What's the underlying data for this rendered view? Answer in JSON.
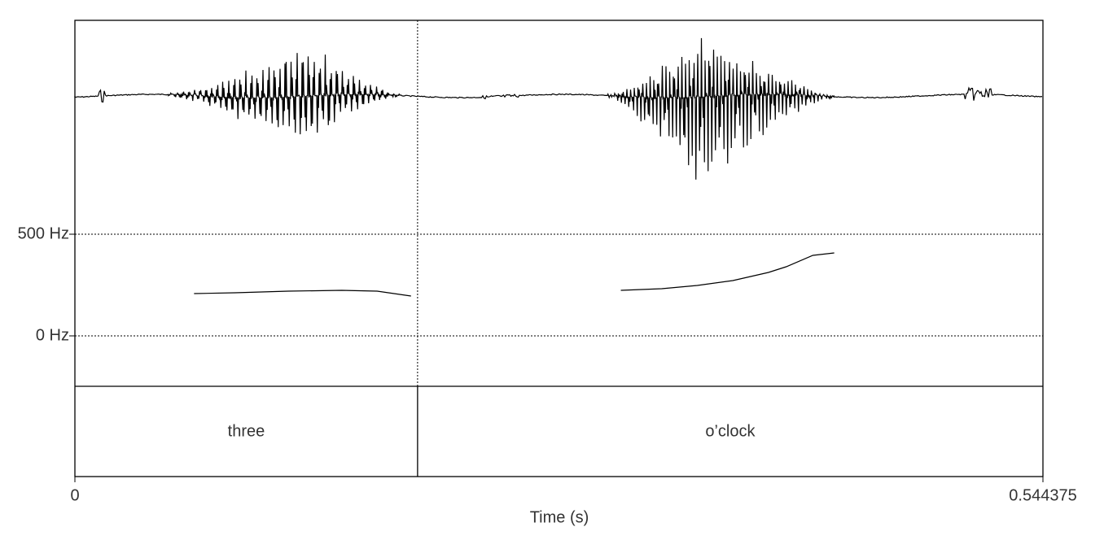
{
  "chart_data": {
    "type": "praat",
    "xlabel": "Time (s)",
    "xlim": [
      0,
      0.544375
    ],
    "xticks": [
      0,
      0.544375
    ],
    "ylim": [
      0,
      500
    ],
    "yticks": [
      {
        "value": 500,
        "label": "500 Hz"
      },
      {
        "value": 0,
        "label": "0 Hz"
      }
    ],
    "grid": true,
    "series": [
      {
        "color": "#000000",
        "x": [
          0.067,
          0.09,
          0.12,
          0.15,
          0.17,
          0.189,
          null,
          0.307,
          0.33,
          0.35,
          0.37,
          0.39,
          0.4,
          0.415,
          0.427
        ],
        "values": [
          208,
          212,
          220,
          224,
          220,
          196,
          null,
          224,
          232,
          248,
          272,
          312,
          340,
          396,
          408
        ]
      }
    ],
    "tier": {
      "intervals": [
        {
          "label": "three",
          "start": 0,
          "end": 0.1927
        },
        {
          "label": "o’clock",
          "start": 0.1927,
          "end": 0.544375
        }
      ]
    }
  }
}
